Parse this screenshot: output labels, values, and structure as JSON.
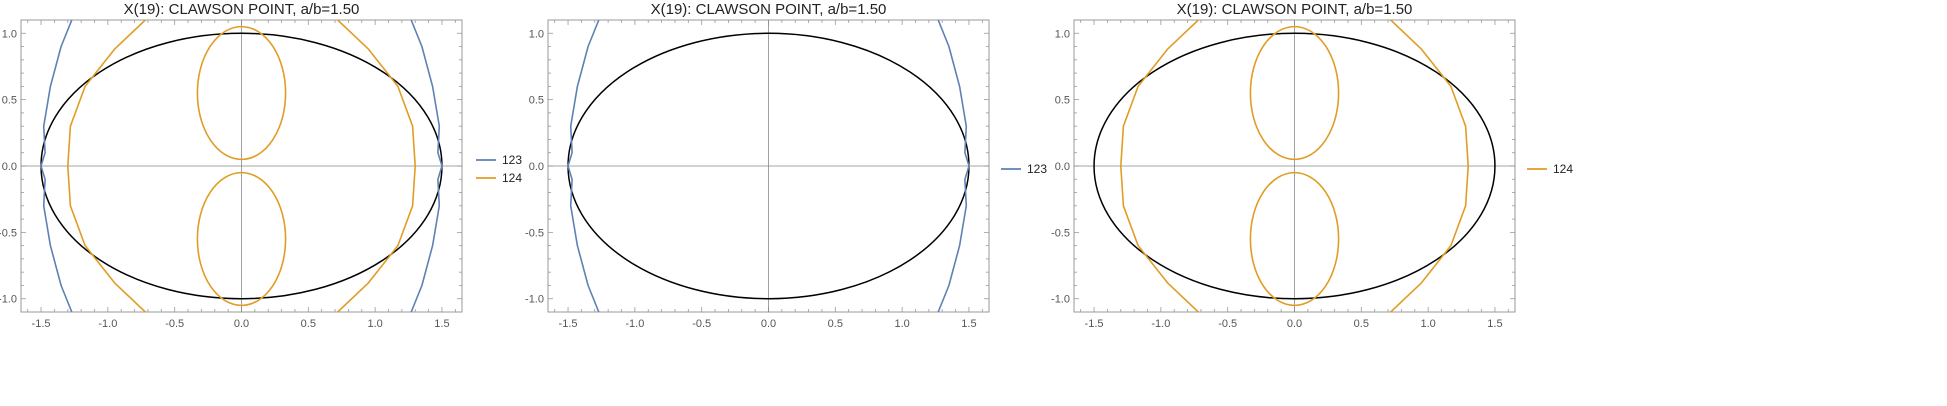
{
  "colors": {
    "ellipse": "#000000",
    "series_123": "#5e81b5",
    "series_124": "#e19c24",
    "axis": "#888888",
    "frame": "#999999"
  },
  "chart_data": [
    {
      "type": "line",
      "title": "X(19): CLAWSON POINT, a/b=1.50",
      "xlabel": "",
      "ylabel": "",
      "xlim": [
        -1.65,
        1.65
      ],
      "ylim": [
        -1.1,
        1.1
      ],
      "xticks": [
        "-1.5",
        "-1.0",
        "-0.5",
        "0.0",
        "0.5",
        "1.0",
        "1.5"
      ],
      "yticks": [
        "-1.0",
        "-0.5",
        "0.0",
        "0.5",
        "1.0"
      ],
      "reference_ellipse": {
        "a": 1.5,
        "b": 1.0
      },
      "series": [
        {
          "name": "123",
          "key": "series_123",
          "curves": [
            [
              [
                -1.27,
                -1.1
              ],
              [
                -1.35,
                -0.9
              ],
              [
                -1.43,
                -0.6
              ],
              [
                -1.48,
                -0.3
              ],
              [
                -1.47,
                -0.1
              ],
              [
                -1.5,
                0.0
              ],
              [
                -1.47,
                0.1
              ],
              [
                -1.48,
                0.3
              ],
              [
                -1.43,
                0.6
              ],
              [
                -1.35,
                0.9
              ],
              [
                -1.27,
                1.1
              ]
            ],
            [
              [
                1.27,
                -1.1
              ],
              [
                1.35,
                -0.9
              ],
              [
                1.43,
                -0.6
              ],
              [
                1.48,
                -0.3
              ],
              [
                1.47,
                -0.1
              ],
              [
                1.5,
                0.0
              ],
              [
                1.47,
                0.1
              ],
              [
                1.48,
                0.3
              ],
              [
                1.43,
                0.6
              ],
              [
                1.35,
                0.9
              ],
              [
                1.27,
                1.1
              ]
            ]
          ]
        },
        {
          "name": "124",
          "key": "series_124",
          "curves": [
            [
              [
                -0.72,
                -1.1
              ],
              [
                -0.95,
                -0.88
              ],
              [
                -1.17,
                -0.6
              ],
              [
                -1.28,
                -0.3
              ],
              [
                -1.3,
                0.0
              ],
              [
                -1.28,
                0.3
              ],
              [
                -1.17,
                0.6
              ],
              [
                -0.95,
                0.88
              ],
              [
                -0.72,
                1.1
              ]
            ],
            [
              [
                0.72,
                -1.1
              ],
              [
                0.95,
                -0.88
              ],
              [
                1.17,
                -0.6
              ],
              [
                1.28,
                -0.3
              ],
              [
                1.3,
                0.0
              ],
              [
                1.28,
                0.3
              ],
              [
                1.17,
                0.6
              ],
              [
                0.95,
                0.88
              ],
              [
                0.72,
                1.1
              ]
            ]
          ],
          "loops": [
            {
              "cx": 0.0,
              "cy": 0.55,
              "rx": 0.33,
              "ry": 0.5
            },
            {
              "cx": 0.0,
              "cy": -0.55,
              "rx": 0.33,
              "ry": 0.5
            }
          ]
        }
      ]
    },
    {
      "type": "line",
      "title": "X(19): CLAWSON POINT, a/b=1.50",
      "xlabel": "",
      "ylabel": "",
      "xlim": [
        -1.65,
        1.65
      ],
      "ylim": [
        -1.1,
        1.1
      ],
      "xticks": [
        "-1.5",
        "-1.0",
        "-0.5",
        "0.0",
        "0.5",
        "1.0",
        "1.5"
      ],
      "yticks": [
        "-1.0",
        "-0.5",
        "0.0",
        "0.5",
        "1.0"
      ],
      "reference_ellipse": {
        "a": 1.5,
        "b": 1.0
      },
      "series": [
        {
          "name": "123",
          "key": "series_123",
          "curves": [
            [
              [
                -1.27,
                -1.1
              ],
              [
                -1.35,
                -0.9
              ],
              [
                -1.43,
                -0.6
              ],
              [
                -1.48,
                -0.3
              ],
              [
                -1.47,
                -0.1
              ],
              [
                -1.5,
                0.0
              ],
              [
                -1.47,
                0.1
              ],
              [
                -1.48,
                0.3
              ],
              [
                -1.43,
                0.6
              ],
              [
                -1.35,
                0.9
              ],
              [
                -1.27,
                1.1
              ]
            ],
            [
              [
                1.27,
                -1.1
              ],
              [
                1.35,
                -0.9
              ],
              [
                1.43,
                -0.6
              ],
              [
                1.48,
                -0.3
              ],
              [
                1.47,
                -0.1
              ],
              [
                1.5,
                0.0
              ],
              [
                1.47,
                0.1
              ],
              [
                1.48,
                0.3
              ],
              [
                1.43,
                0.6
              ],
              [
                1.35,
                0.9
              ],
              [
                1.27,
                1.1
              ]
            ]
          ]
        }
      ]
    },
    {
      "type": "line",
      "title": "X(19): CLAWSON POINT, a/b=1.50",
      "xlabel": "",
      "ylabel": "",
      "xlim": [
        -1.65,
        1.65
      ],
      "ylim": [
        -1.1,
        1.1
      ],
      "xticks": [
        "-1.5",
        "-1.0",
        "-0.5",
        "0.0",
        "0.5",
        "1.0",
        "1.5"
      ],
      "yticks": [
        "-1.0",
        "-0.5",
        "0.0",
        "0.5",
        "1.0"
      ],
      "reference_ellipse": {
        "a": 1.5,
        "b": 1.0
      },
      "series": [
        {
          "name": "124",
          "key": "series_124",
          "curves": [
            [
              [
                -0.72,
                -1.1
              ],
              [
                -0.95,
                -0.88
              ],
              [
                -1.17,
                -0.6
              ],
              [
                -1.28,
                -0.3
              ],
              [
                -1.3,
                0.0
              ],
              [
                -1.28,
                0.3
              ],
              [
                -1.17,
                0.6
              ],
              [
                -0.95,
                0.88
              ],
              [
                -0.72,
                1.1
              ]
            ],
            [
              [
                0.72,
                -1.1
              ],
              [
                0.95,
                -0.88
              ],
              [
                1.17,
                -0.6
              ],
              [
                1.28,
                -0.3
              ],
              [
                1.3,
                0.0
              ],
              [
                1.28,
                0.3
              ],
              [
                1.17,
                0.6
              ],
              [
                0.95,
                0.88
              ],
              [
                0.72,
                1.1
              ]
            ]
          ],
          "loops": [
            {
              "cx": 0.0,
              "cy": 0.55,
              "rx": 0.33,
              "ry": 0.5
            },
            {
              "cx": 0.0,
              "cy": -0.55,
              "rx": 0.33,
              "ry": 0.5
            }
          ]
        }
      ]
    }
  ]
}
